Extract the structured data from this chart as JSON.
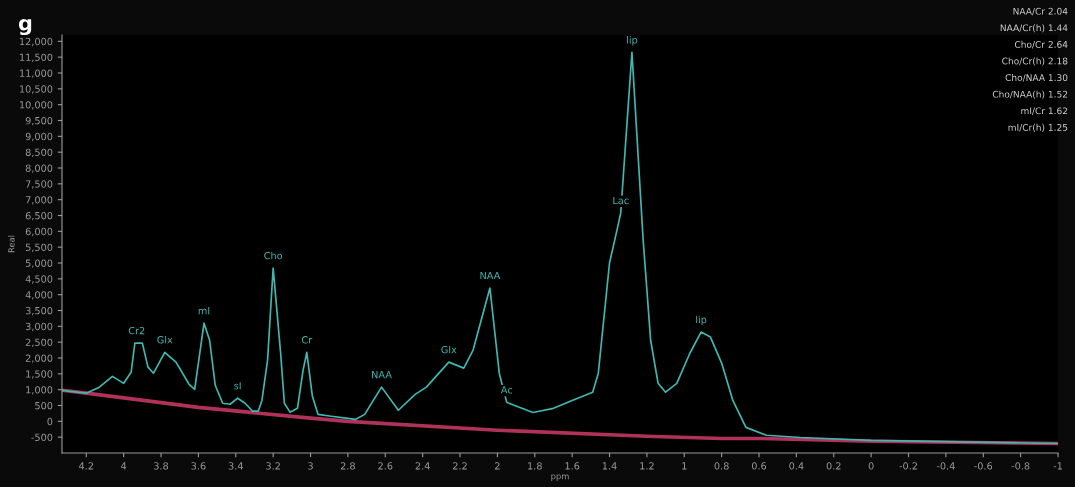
{
  "chart_data": {
    "type": "line",
    "xlabel": "ppm",
    "ylabel": "Real",
    "xlim": [
      4.33,
      -1
    ],
    "ylim": [
      -1000,
      12200
    ],
    "xticks": [
      4.2,
      4,
      3.8,
      3.6,
      3.4,
      3.2,
      3,
      2.8,
      2.6,
      2.4,
      2.2,
      2,
      1.8,
      1.6,
      1.4,
      1.2,
      1,
      0.8,
      0.6,
      0.4,
      0.2,
      0,
      -0.2,
      -0.4,
      -0.6,
      -0.8,
      -1
    ],
    "yticks": [
      {
        "value": -500,
        "label": "-500"
      },
      0,
      500,
      {
        "value": 1000,
        "label": "1,000"
      },
      {
        "value": 1500,
        "label": "1,500"
      },
      {
        "value": 2000,
        "label": "2,000"
      },
      {
        "value": 2500,
        "label": "2,500"
      },
      {
        "value": 3000,
        "label": "3,000"
      },
      {
        "value": 3500,
        "label": "3,500"
      },
      {
        "value": 4000,
        "label": "4,000"
      },
      {
        "value": 4500,
        "label": "4,500"
      },
      {
        "value": 5000,
        "label": "5,000"
      },
      {
        "value": 5500,
        "label": "5,500"
      },
      {
        "value": 6000,
        "label": "6,000"
      },
      {
        "value": 6500,
        "label": "6,500"
      },
      {
        "value": 7000,
        "label": "7,000"
      },
      {
        "value": 7500,
        "label": "7,500"
      },
      {
        "value": 8000,
        "label": "8,000"
      },
      {
        "value": 8500,
        "label": "8,500"
      },
      {
        "value": 9000,
        "label": "9,000"
      },
      {
        "value": 9500,
        "label": "9,500"
      },
      {
        "value": 10000,
        "label": "10,000"
      },
      {
        "value": 10500,
        "label": "10,500"
      },
      {
        "value": 11000,
        "label": "11,000"
      },
      {
        "value": 11500,
        "label": "11,500"
      },
      {
        "value": 12000,
        "label": "12,000"
      }
    ],
    "grid": false,
    "legend": false,
    "marker": "none",
    "line_style": "solid",
    "series": [
      {
        "color": "#b0325a",
        "x": [
          4.33,
          4.2,
          3.6,
          3.0,
          2.8,
          2.0,
          1.2,
          0.8,
          0.6,
          0,
          -1
        ],
        "values": [
          980,
          890,
          440,
          100,
          0,
          -280,
          -470,
          -540,
          -540,
          -630,
          -700
        ]
      },
      {
        "color": "#3fb8b0",
        "x": [
          4.33,
          4.2,
          4.13,
          4.06,
          4.0,
          3.96,
          3.94,
          3.9,
          3.87,
          3.84,
          3.78,
          3.72,
          3.65,
          3.62,
          3.57,
          3.54,
          3.51,
          3.47,
          3.43,
          3.39,
          3.35,
          3.31,
          3.28,
          3.26,
          3.23,
          3.2,
          3.16,
          3.14,
          3.11,
          3.07,
          3.04,
          3.02,
          2.99,
          2.96,
          2.89,
          2.81,
          2.76,
          2.71,
          2.62,
          2.53,
          2.44,
          2.38,
          2.26,
          2.18,
          2.13,
          2.04,
          1.99,
          1.95,
          1.81,
          1.7,
          1.6,
          1.49,
          1.46,
          1.4,
          1.36,
          1.34,
          1.28,
          1.22,
          1.18,
          1.14,
          1.1,
          1.04,
          0.97,
          0.91,
          0.86,
          0.8,
          0.74,
          0.67,
          0.56,
          0.38,
          0,
          -1
        ],
        "values": [
          980,
          890,
          1080,
          1420,
          1200,
          1550,
          2470,
          2470,
          1710,
          1520,
          2180,
          1870,
          1170,
          1010,
          3100,
          2560,
          1140,
          570,
          540,
          730,
          570,
          320,
          320,
          660,
          1930,
          4840,
          2150,
          570,
          290,
          410,
          1610,
          2180,
          790,
          220,
          160,
          100,
          60,
          220,
          1080,
          350,
          850,
          1080,
          1870,
          1680,
          2250,
          4210,
          1520,
          600,
          280,
          410,
          660,
          920,
          1520,
          5000,
          6040,
          6580,
          11650,
          5730,
          2560,
          1200,
          920,
          1200,
          2150,
          2820,
          2660,
          1840,
          660,
          -190,
          -440,
          -510,
          -600,
          -700
        ]
      }
    ],
    "annotations": [
      "g",
      {
        "text": "Cr2",
        "x": 3.93,
        "y": 2470
      },
      {
        "text": "Glx",
        "x": 3.78,
        "y": 2180
      },
      {
        "text": "mI",
        "x": 3.57,
        "y": 3100
      },
      {
        "text": "sI",
        "x": 3.39,
        "y": 730
      },
      {
        "text": "Cho",
        "x": 3.2,
        "y": 4840
      },
      {
        "text": "Cr",
        "x": 3.02,
        "y": 2180
      },
      {
        "text": "NAA",
        "x": 2.62,
        "y": 1080
      },
      {
        "text": "Glx",
        "x": 2.26,
        "y": 1870
      },
      {
        "text": "NAA",
        "x": 2.04,
        "y": 4210
      },
      {
        "text": "Ac",
        "x": 1.95,
        "y": 600
      },
      {
        "text": "Lac",
        "x": 1.34,
        "y": 6580
      },
      {
        "text": "lip",
        "x": 1.28,
        "y": 11650
      },
      {
        "text": "lip",
        "x": 0.91,
        "y": 2820
      },
      "NAA/Cr 2.04",
      "NAA/Cr(h) 1.44",
      "Cho/Cr 2.64",
      "Cho/Cr(h) 2.18",
      "Cho/NAA 1.30",
      "Cho/NAA(h) 1.52",
      "mI/Cr 1.62",
      "mI/Cr(h) 1.25"
    ]
  }
}
